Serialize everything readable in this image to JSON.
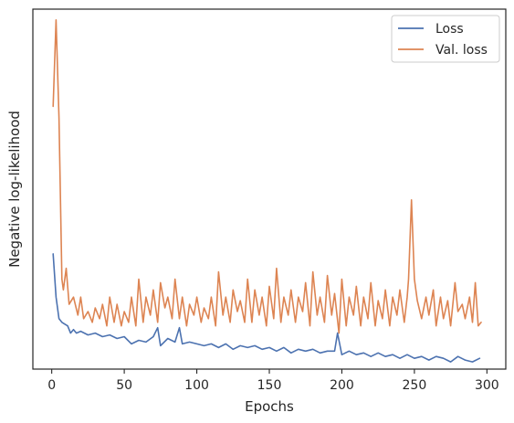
{
  "chart_data": {
    "type": "line",
    "xlabel": "Epochs",
    "ylabel": "Negative log-likelihood",
    "xlim": [
      -13,
      313
    ],
    "ylim": [
      0,
      1
    ],
    "x_ticks": [
      0,
      50,
      100,
      150,
      200,
      250,
      300
    ],
    "y_ticks_shown": false,
    "grid": false,
    "legend": {
      "placement": "top-right"
    },
    "series": [
      {
        "name": "Loss",
        "color": "#4c72b0",
        "x": [
          1,
          3,
          5,
          7,
          9,
          11,
          13,
          15,
          17,
          20,
          25,
          30,
          35,
          40,
          45,
          50,
          55,
          60,
          65,
          70,
          73,
          75,
          80,
          85,
          88,
          90,
          95,
          100,
          105,
          110,
          115,
          120,
          125,
          130,
          135,
          140,
          145,
          150,
          155,
          160,
          165,
          170,
          175,
          180,
          185,
          190,
          195,
          197,
          200,
          205,
          210,
          215,
          220,
          225,
          230,
          235,
          240,
          245,
          250,
          255,
          260,
          265,
          270,
          275,
          280,
          285,
          290,
          295
        ],
        "y": [
          0.32,
          0.2,
          0.14,
          0.13,
          0.125,
          0.12,
          0.1,
          0.11,
          0.1,
          0.105,
          0.095,
          0.1,
          0.09,
          0.095,
          0.085,
          0.09,
          0.07,
          0.08,
          0.075,
          0.09,
          0.115,
          0.065,
          0.085,
          0.075,
          0.115,
          0.07,
          0.075,
          0.07,
          0.065,
          0.07,
          0.06,
          0.07,
          0.055,
          0.065,
          0.06,
          0.065,
          0.055,
          0.06,
          0.05,
          0.06,
          0.045,
          0.055,
          0.05,
          0.055,
          0.045,
          0.05,
          0.05,
          0.1,
          0.04,
          0.05,
          0.04,
          0.045,
          0.035,
          0.045,
          0.035,
          0.04,
          0.03,
          0.04,
          0.03,
          0.035,
          0.025,
          0.035,
          0.03,
          0.02,
          0.035,
          0.025,
          0.02,
          0.03
        ]
      },
      {
        "name": "Val. loss",
        "color": "#dd8452",
        "x": [
          1,
          3,
          5,
          7,
          8,
          10,
          12,
          15,
          18,
          20,
          22,
          25,
          28,
          30,
          33,
          35,
          38,
          40,
          43,
          45,
          48,
          50,
          53,
          55,
          58,
          60,
          63,
          65,
          68,
          70,
          73,
          75,
          78,
          80,
          83,
          85,
          88,
          90,
          93,
          95,
          98,
          100,
          103,
          105,
          108,
          110,
          113,
          115,
          118,
          120,
          123,
          125,
          128,
          130,
          133,
          135,
          138,
          140,
          143,
          145,
          148,
          150,
          153,
          155,
          158,
          160,
          163,
          165,
          168,
          170,
          173,
          175,
          178,
          180,
          183,
          185,
          188,
          190,
          193,
          195,
          198,
          200,
          203,
          205,
          208,
          210,
          213,
          215,
          218,
          220,
          223,
          225,
          228,
          230,
          233,
          235,
          238,
          240,
          243,
          245,
          246,
          248,
          250,
          252,
          255,
          258,
          260,
          263,
          265,
          268,
          270,
          273,
          275,
          278,
          280,
          283,
          285,
          288,
          290,
          292,
          294,
          296
        ],
        "y": [
          0.73,
          0.97,
          0.7,
          0.25,
          0.22,
          0.28,
          0.18,
          0.2,
          0.15,
          0.2,
          0.14,
          0.16,
          0.13,
          0.17,
          0.14,
          0.18,
          0.12,
          0.2,
          0.13,
          0.18,
          0.12,
          0.16,
          0.13,
          0.2,
          0.12,
          0.25,
          0.13,
          0.2,
          0.15,
          0.22,
          0.13,
          0.24,
          0.17,
          0.2,
          0.14,
          0.25,
          0.14,
          0.2,
          0.12,
          0.18,
          0.15,
          0.2,
          0.13,
          0.17,
          0.14,
          0.2,
          0.12,
          0.27,
          0.15,
          0.2,
          0.13,
          0.22,
          0.16,
          0.19,
          0.13,
          0.25,
          0.13,
          0.22,
          0.15,
          0.2,
          0.12,
          0.23,
          0.14,
          0.28,
          0.13,
          0.2,
          0.15,
          0.22,
          0.13,
          0.2,
          0.16,
          0.24,
          0.12,
          0.27,
          0.15,
          0.2,
          0.13,
          0.26,
          0.15,
          0.21,
          0.1,
          0.25,
          0.12,
          0.2,
          0.15,
          0.23,
          0.12,
          0.2,
          0.14,
          0.24,
          0.12,
          0.19,
          0.14,
          0.22,
          0.12,
          0.2,
          0.15,
          0.22,
          0.13,
          0.2,
          0.25,
          0.47,
          0.25,
          0.19,
          0.14,
          0.2,
          0.15,
          0.22,
          0.12,
          0.2,
          0.14,
          0.19,
          0.12,
          0.24,
          0.16,
          0.18,
          0.14,
          0.2,
          0.13,
          0.24,
          0.12,
          0.13
        ]
      }
    ]
  }
}
